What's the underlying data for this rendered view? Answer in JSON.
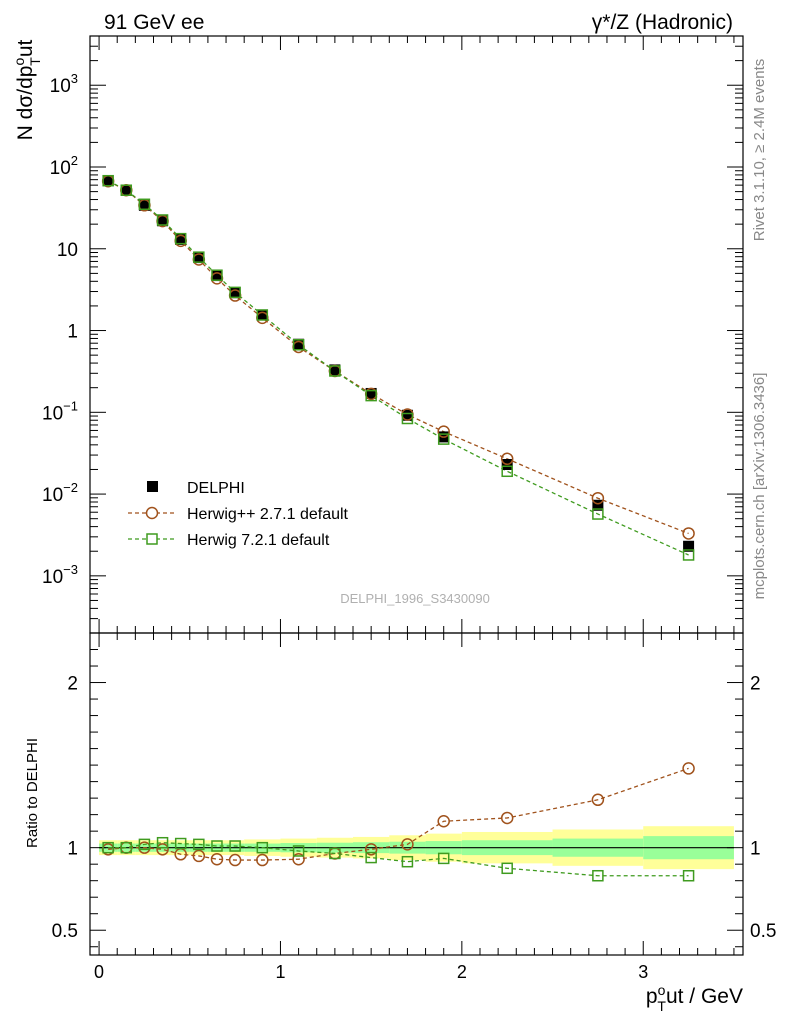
{
  "header": {
    "left_title": "91 GeV ee",
    "right_title": "γ*/Z (Hadronic)"
  },
  "side_labels": {
    "rivet": "Rivet 3.1.10, ≥ 2.4M events",
    "mcplots": "mcplots.cern.ch [arXiv:1306.3436]"
  },
  "watermark": "DELPHI_1996_S3430090",
  "colors": {
    "data": "#000000",
    "herwigpp": "#a0521c",
    "herwig7": "#3f9b1f",
    "band_inner": "#99ff99",
    "band_outer": "#ffff99"
  },
  "chart_data": [
    {
      "panel": "main",
      "type": "scatter",
      "scale_y": "log",
      "ylabel": "N dσ/dpᵀout",
      "ylabel_main": "N dσ/dp",
      "ylabel_sub": "T",
      "ylabel_sup": "o",
      "ylabel_tail": "ut",
      "xlim": [
        -0.05,
        3.55
      ],
      "ylim": [
        0.0002,
        4000
      ],
      "y_ticks": [
        {
          "value": 1000,
          "base": "10",
          "exp": "3"
        },
        {
          "value": 100,
          "base": "10",
          "exp": "2"
        },
        {
          "value": 10,
          "base": "10",
          "exp": ""
        },
        {
          "value": 1,
          "base": "1",
          "exp": ""
        },
        {
          "value": 0.1,
          "base": "10",
          "exp": "−1"
        },
        {
          "value": 0.01,
          "base": "10",
          "exp": "−2"
        },
        {
          "value": 0.001,
          "base": "10",
          "exp": "−3"
        }
      ],
      "x": [
        0.05,
        0.15,
        0.25,
        0.35,
        0.45,
        0.55,
        0.65,
        0.75,
        0.9,
        1.1,
        1.3,
        1.5,
        1.7,
        1.9,
        2.25,
        2.75,
        3.25
      ],
      "series": [
        {
          "name": "DELPHI",
          "key": "data",
          "marker": "filled-square",
          "values": [
            68,
            52,
            34,
            22,
            13,
            7.8,
            4.7,
            2.9,
            1.55,
            0.68,
            0.33,
            0.17,
            0.092,
            0.05,
            0.023,
            0.0073,
            0.0023
          ]
        },
        {
          "name": "Herwig++ 2.7.1 default",
          "key": "herwigpp",
          "marker": "open-circle",
          "values": [
            67,
            52,
            34,
            21.8,
            12.5,
            7.4,
            4.35,
            2.68,
            1.43,
            0.63,
            0.32,
            0.168,
            0.094,
            0.058,
            0.027,
            0.0089,
            0.0033
          ]
        },
        {
          "name": "Herwig 7.2.1 default",
          "key": "herwig7",
          "marker": "open-square",
          "values": [
            68,
            52,
            35,
            22.5,
            13.3,
            7.9,
            4.75,
            2.93,
            1.55,
            0.67,
            0.32,
            0.16,
            0.084,
            0.047,
            0.019,
            0.0057,
            0.0018
          ]
        }
      ]
    },
    {
      "panel": "ratio",
      "type": "scatter",
      "ylabel": "Ratio to DELPHI",
      "xlabel": "pᵀout / GeV",
      "xlabel_main": "p",
      "xlabel_sub": "T",
      "xlabel_sup": "o",
      "xlabel_tail": "ut / GeV",
      "xlim": [
        -0.05,
        3.55
      ],
      "ylim": [
        0.35,
        2.3
      ],
      "x_ticks": [
        {
          "value": 0,
          "label": "0"
        },
        {
          "value": 1,
          "label": "1"
        },
        {
          "value": 2,
          "label": "2"
        },
        {
          "value": 3,
          "label": "3"
        }
      ],
      "y_ticks": [
        {
          "value": 2,
          "label": "2"
        },
        {
          "value": 1,
          "label": "1"
        },
        {
          "value": 0.5,
          "label": "0.5"
        }
      ],
      "reference": 1,
      "bin_edges": [
        0,
        0.1,
        0.2,
        0.3,
        0.4,
        0.5,
        0.6,
        0.7,
        0.8,
        1.0,
        1.2,
        1.4,
        1.6,
        1.8,
        2.0,
        2.5,
        3.0,
        3.5
      ],
      "band_inner": [
        0.025,
        0.025,
        0.025,
        0.025,
        0.025,
        0.025,
        0.025,
        0.025,
        0.025,
        0.028,
        0.03,
        0.033,
        0.036,
        0.04,
        0.045,
        0.055,
        0.07
      ],
      "band_outer": [
        0.045,
        0.045,
        0.045,
        0.045,
        0.045,
        0.045,
        0.045,
        0.045,
        0.05,
        0.055,
        0.06,
        0.065,
        0.075,
        0.085,
        0.095,
        0.11,
        0.13
      ],
      "x": [
        0.05,
        0.15,
        0.25,
        0.35,
        0.45,
        0.55,
        0.65,
        0.75,
        0.9,
        1.1,
        1.3,
        1.5,
        1.7,
        1.9,
        2.25,
        2.75,
        3.25
      ],
      "series": [
        {
          "name": "Herwig++ 2.7.1 default",
          "key": "herwigpp",
          "marker": "open-circle",
          "values": [
            0.99,
            1.0,
            1.0,
            0.99,
            0.96,
            0.95,
            0.93,
            0.925,
            0.925,
            0.93,
            0.965,
            0.99,
            1.02,
            1.16,
            1.18,
            1.29,
            1.48
          ]
        },
        {
          "name": "Herwig 7.2.1 default",
          "key": "herwig7",
          "marker": "open-square",
          "values": [
            1.0,
            1.0,
            1.02,
            1.03,
            1.025,
            1.02,
            1.01,
            1.01,
            1.0,
            0.98,
            0.965,
            0.94,
            0.915,
            0.935,
            0.875,
            0.83,
            0.83
          ]
        }
      ]
    }
  ]
}
